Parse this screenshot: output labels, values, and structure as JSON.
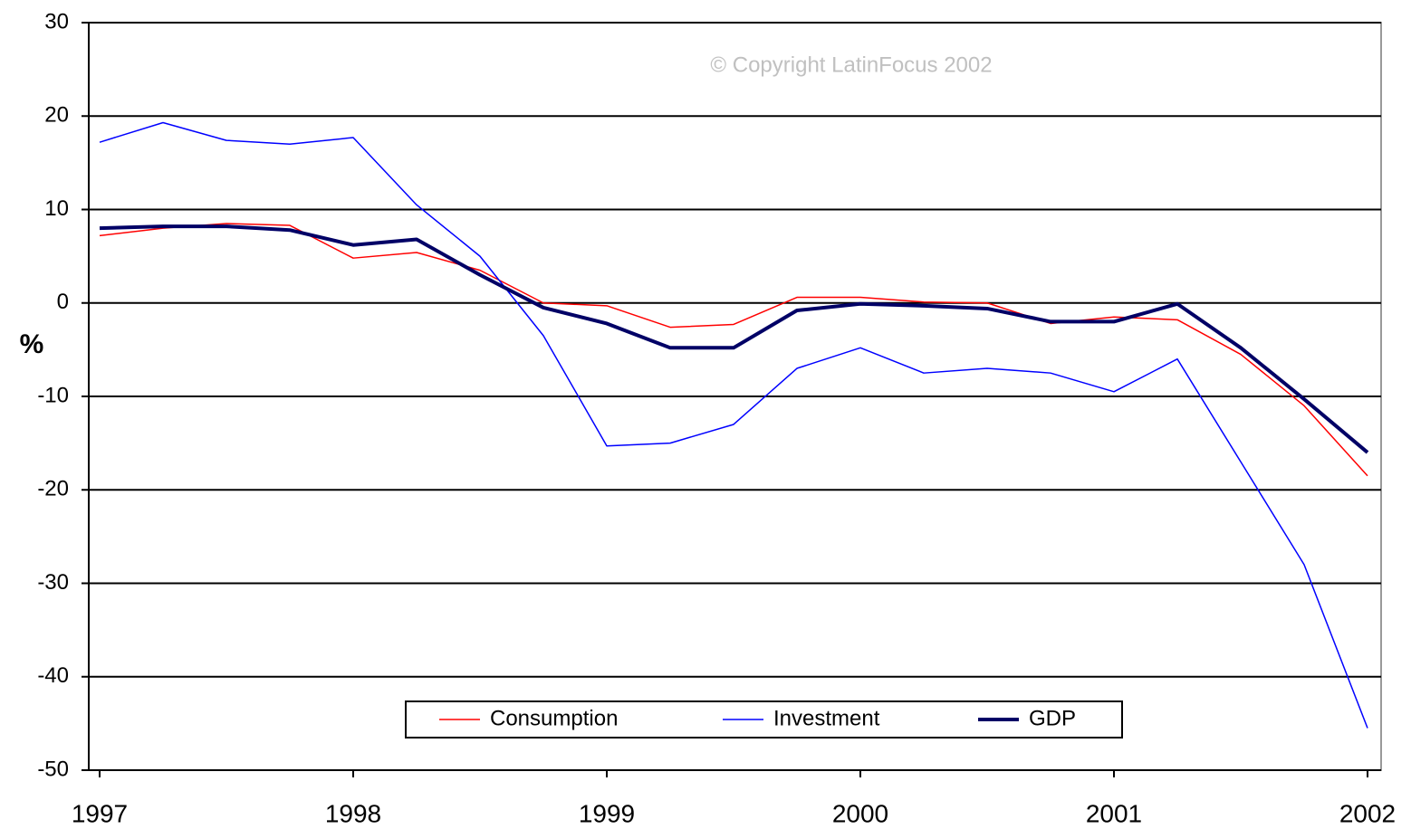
{
  "chart_data": {
    "type": "line",
    "y_label": "%",
    "annotation": "© Copyright LatinFocus 2002",
    "categories": [
      "1997",
      null,
      null,
      null,
      "1998",
      null,
      null,
      null,
      "1999",
      null,
      null,
      null,
      "2000",
      null,
      null,
      null,
      "2001",
      null,
      null,
      null,
      "2002"
    ],
    "series": [
      {
        "name": "Consumption",
        "color": "#ff0000",
        "width": 1.5,
        "values": [
          7.2,
          8,
          8.5,
          8.3,
          4.8,
          5.4,
          3.5,
          0,
          -0.3,
          -2.6,
          -2.3,
          0.6,
          0.6,
          0.1,
          0,
          -2.2,
          -1.5,
          -1.8,
          -5.5,
          -11,
          -18.5
        ]
      },
      {
        "name": "Investment",
        "color": "#0000ff",
        "width": 1.5,
        "values": [
          17.2,
          19.3,
          17.4,
          17,
          17.7,
          10.5,
          5,
          -3.5,
          -15.3,
          -15,
          -13,
          -7,
          -4.8,
          -7.5,
          -7,
          -7.5,
          -9.5,
          -6,
          -17,
          -28,
          -45.5
        ]
      },
      {
        "name": "GDP",
        "color": "#000066",
        "width": 4,
        "values": [
          8,
          8.2,
          8.2,
          7.8,
          6.2,
          6.8,
          3,
          -0.5,
          -2.2,
          -4.8,
          -4.8,
          -0.8,
          -0.1,
          -0.3,
          -0.6,
          -2,
          -2,
          -0.1,
          -4.8,
          -10.3,
          -16
        ]
      }
    ],
    "ylim": [
      -50,
      30
    ],
    "yticks": [
      -50,
      -40,
      -30,
      -20,
      -10,
      0,
      10,
      20,
      30
    ],
    "grid": true,
    "legend": "bottom"
  }
}
